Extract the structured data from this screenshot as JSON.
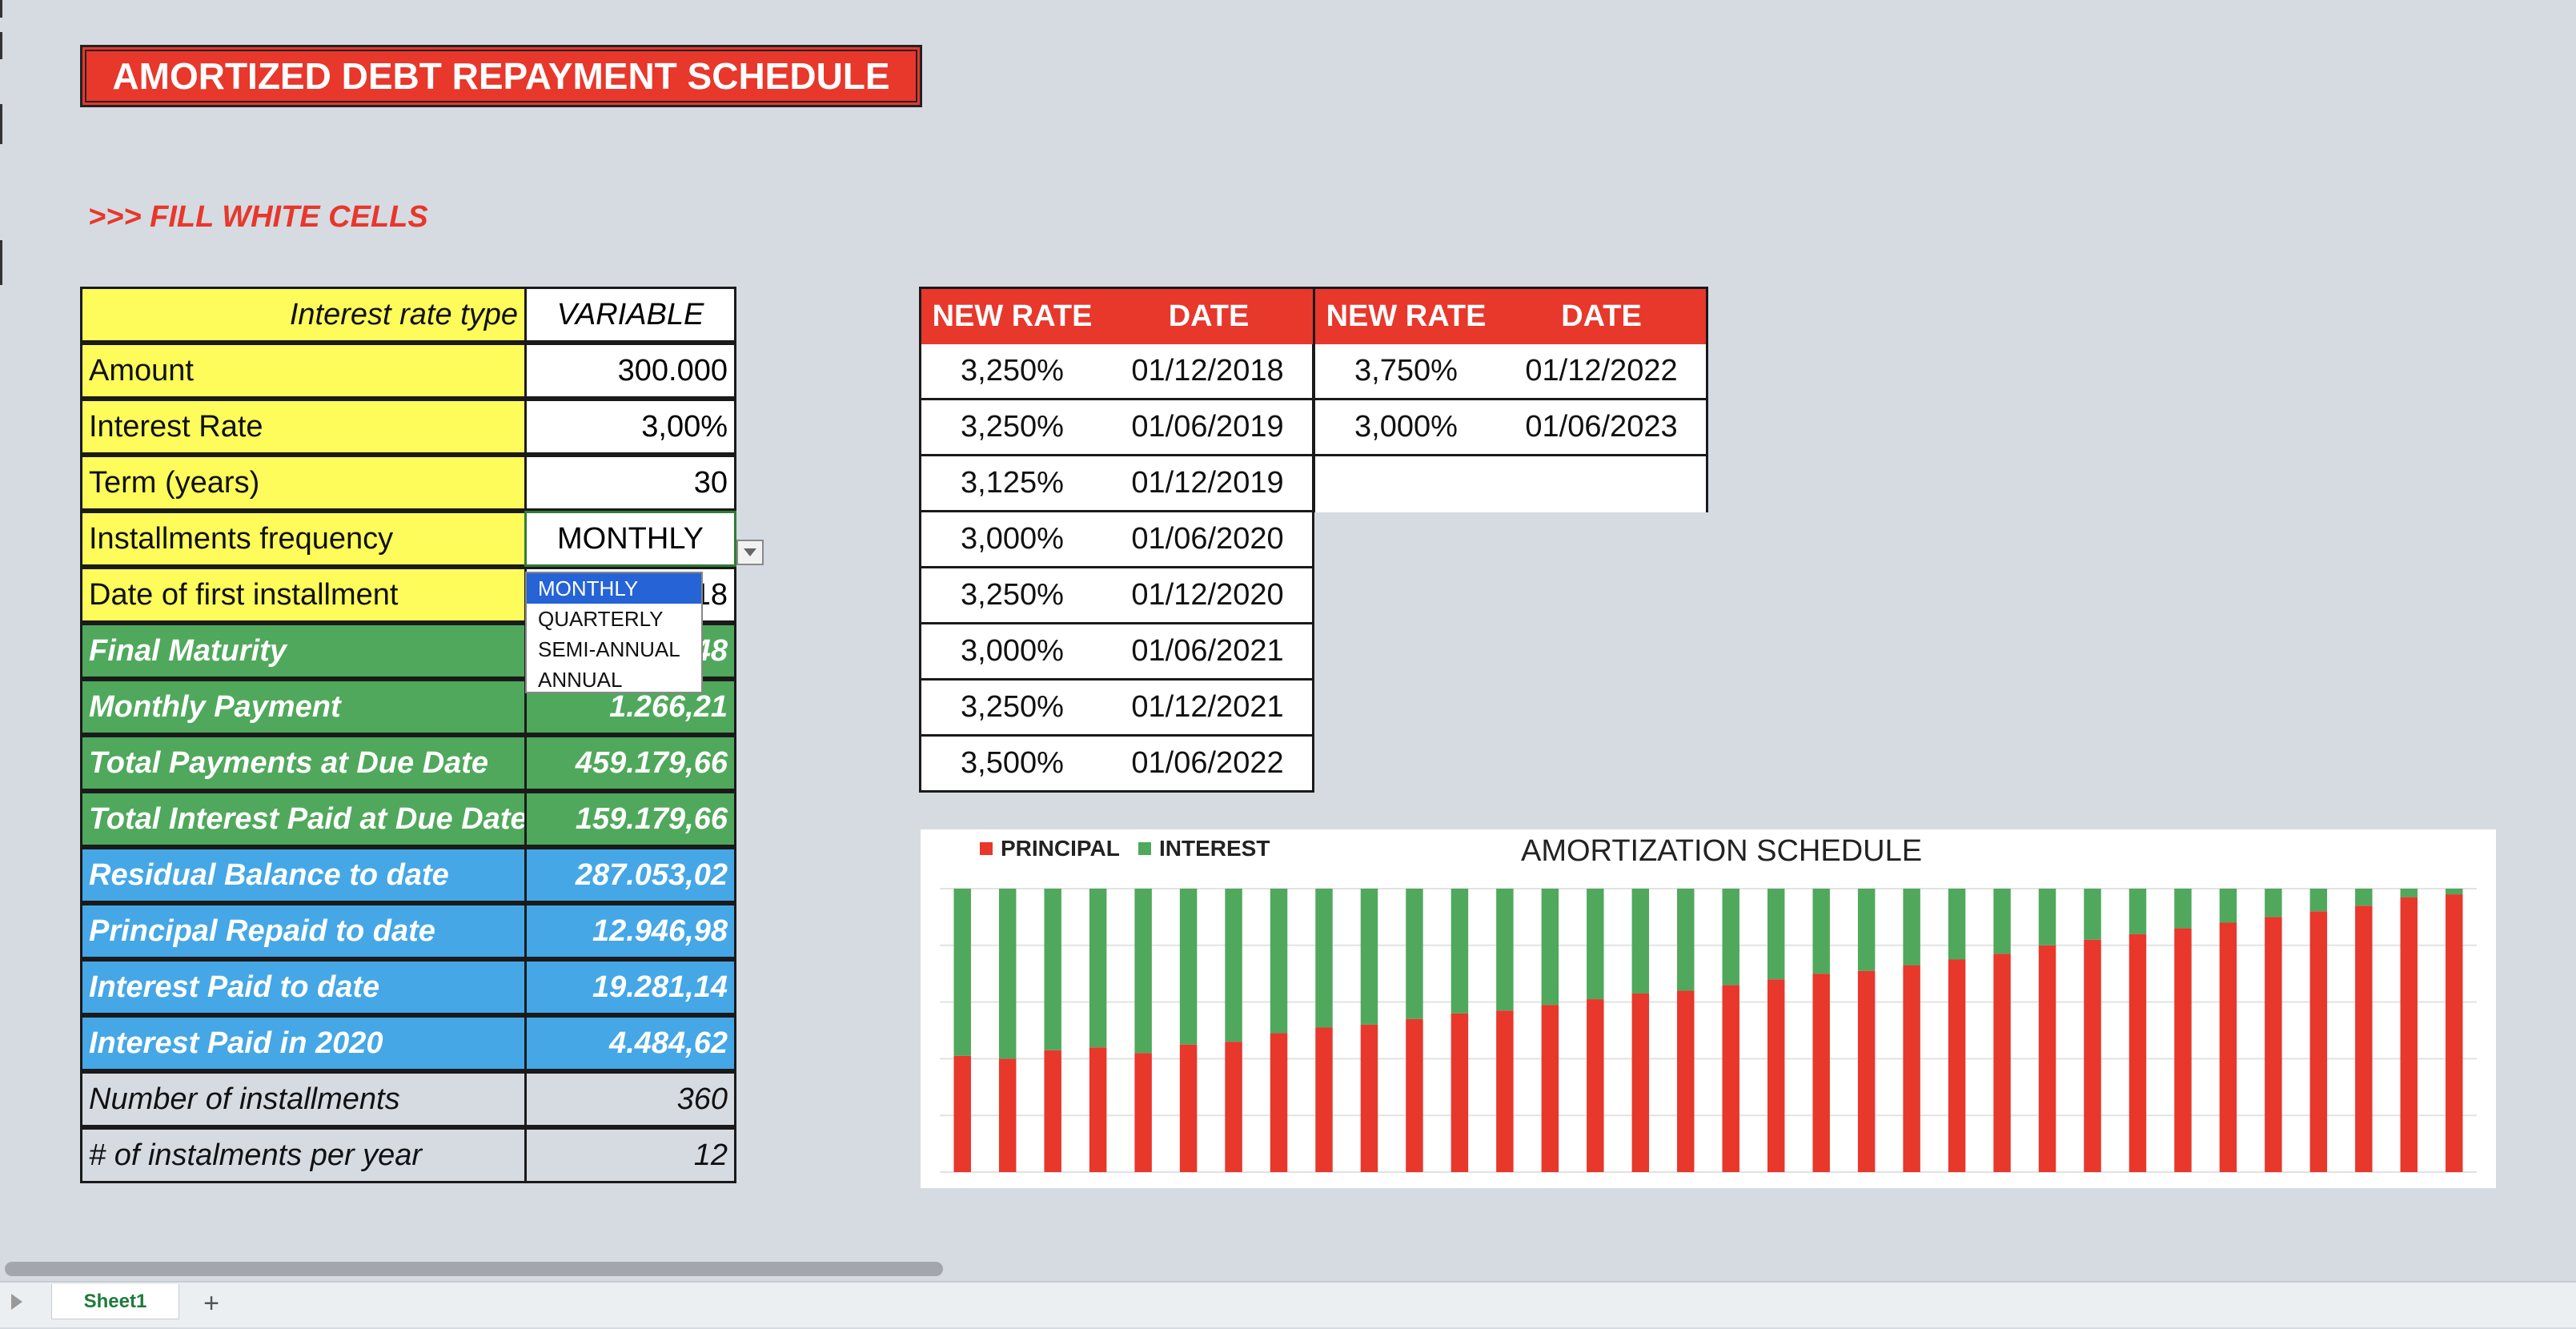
{
  "title": "AMORTIZED DEBT REPAYMENT SCHEDULE",
  "note": ">>> FILL WHITE CELLS",
  "inputs": [
    {
      "label": "Interest rate type",
      "value": "VARIABLE"
    },
    {
      "label": "Amount",
      "value": "300.000"
    },
    {
      "label": "Interest Rate",
      "value": "3,00%"
    },
    {
      "label": "Term (years)",
      "value": "30"
    },
    {
      "label": "Installments frequency",
      "value": "MONTHLY"
    },
    {
      "label": "Date of first installment",
      "value": "18"
    }
  ],
  "results_green": [
    {
      "label": "Final Maturity",
      "value": "48"
    },
    {
      "label": "Monthly Payment",
      "value": "1.266,21"
    },
    {
      "label": "Total Payments at Due Date",
      "value": "459.179,66"
    },
    {
      "label": "Total Interest Paid at Due Date",
      "value": "159.179,66"
    }
  ],
  "results_blue": [
    {
      "label": "Residual Balance to date",
      "value": "287.053,02"
    },
    {
      "label": "Principal Repaid to date",
      "value": "12.946,98"
    },
    {
      "label": "Interest Paid to date",
      "value": "19.281,14"
    },
    {
      "label": "Interest Paid in 2020",
      "value": "4.484,62"
    }
  ],
  "results_grey": [
    {
      "label": "Number of installments",
      "value": "360"
    },
    {
      "label": "# of instalments per year",
      "value": "12"
    }
  ],
  "dropdown": {
    "options": [
      "MONTHLY",
      "QUARTERLY",
      "SEMI-ANNUAL",
      "ANNUAL"
    ],
    "selected": "MONTHLY"
  },
  "rate_table": {
    "headers": [
      "NEW RATE",
      "DATE",
      "NEW RATE",
      "DATE"
    ],
    "col1": [
      [
        "3,250%",
        "01/12/2018"
      ],
      [
        "3,250%",
        "01/06/2019"
      ],
      [
        "3,125%",
        "01/12/2019"
      ],
      [
        "3,000%",
        "01/06/2020"
      ],
      [
        "3,250%",
        "01/12/2020"
      ],
      [
        "3,000%",
        "01/06/2021"
      ],
      [
        "3,250%",
        "01/12/2021"
      ],
      [
        "3,500%",
        "01/06/2022"
      ]
    ],
    "col2": [
      [
        "3,750%",
        "01/12/2022"
      ],
      [
        "3,000%",
        "01/06/2023"
      ]
    ]
  },
  "chart_data": {
    "type": "bar",
    "stacked": true,
    "percent_stacked": true,
    "title": "AMORTIZATION SCHEDULE",
    "legend_position": "top-left",
    "grid": true,
    "colors": {
      "principal": "#e8372b",
      "interest": "#50a85c"
    },
    "series": [
      {
        "name": "PRINCIPAL",
        "values": [
          0.41,
          0.4,
          0.43,
          0.44,
          0.42,
          0.45,
          0.46,
          0.49,
          0.51,
          0.52,
          0.54,
          0.56,
          0.57,
          0.59,
          0.61,
          0.63,
          0.64,
          0.66,
          0.68,
          0.7,
          0.71,
          0.73,
          0.75,
          0.77,
          0.8,
          0.82,
          0.84,
          0.86,
          0.88,
          0.9,
          0.92,
          0.94,
          0.97,
          0.98
        ]
      },
      {
        "name": "INTEREST",
        "values": [
          0.59,
          0.6,
          0.57,
          0.56,
          0.58,
          0.55,
          0.54,
          0.51,
          0.49,
          0.48,
          0.46,
          0.44,
          0.43,
          0.41,
          0.39,
          0.37,
          0.36,
          0.34,
          0.32,
          0.3,
          0.29,
          0.27,
          0.25,
          0.23,
          0.2,
          0.18,
          0.16,
          0.14,
          0.12,
          0.1,
          0.08,
          0.06,
          0.03,
          0.02
        ]
      }
    ]
  },
  "sheet_tabs": [
    {
      "label": "Sheet1"
    }
  ],
  "add_sheet_label": "+"
}
